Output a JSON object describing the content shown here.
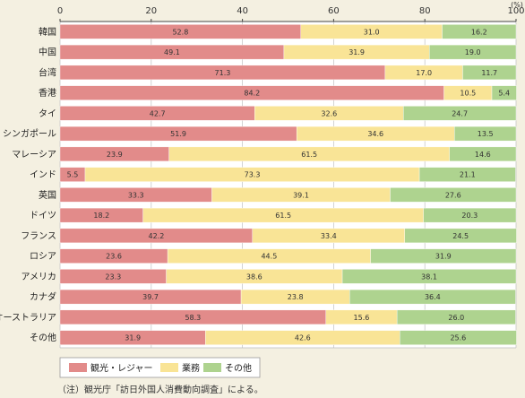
{
  "chart_data": {
    "type": "bar",
    "orientation": "horizontal",
    "stacked": true,
    "unit": "(%)",
    "xlim": [
      0,
      100
    ],
    "xticks": [
      "0",
      "20",
      "40",
      "60",
      "80",
      "100"
    ],
    "grid": true,
    "legend_position": "bottom-left",
    "categories": [
      "韓国",
      "中国",
      "台湾",
      "香港",
      "タイ",
      "シンガポール",
      "マレーシア",
      "インド",
      "英国",
      "ドイツ",
      "フランス",
      "ロシア",
      "アメリカ",
      "カナダ",
      "オーストラリア",
      "その他"
    ],
    "series": [
      {
        "name": "観光・レジャー",
        "color": "#e28b8a",
        "values": [
          52.8,
          49.1,
          71.3,
          84.2,
          42.7,
          51.9,
          23.9,
          5.5,
          33.3,
          18.2,
          42.2,
          23.6,
          23.3,
          39.7,
          58.3,
          31.9
        ],
        "labels": [
          "52.8",
          "49.1",
          "71.3",
          "84.2",
          "42.7",
          "51.9",
          "23.9",
          "5.5",
          "33.3",
          "18.2",
          "42.2",
          "23.6",
          "23.3",
          "39.7",
          "58.3",
          "31.9"
        ]
      },
      {
        "name": "業務",
        "color": "#f9e496",
        "values": [
          31.0,
          31.9,
          17.0,
          10.5,
          32.6,
          34.6,
          61.5,
          73.3,
          39.1,
          61.5,
          33.4,
          44.5,
          38.6,
          23.8,
          15.6,
          42.6
        ],
        "labels": [
          "31.0",
          "31.9",
          "17.0",
          "10.5",
          "32.6",
          "34.6",
          "61.5",
          "73.3",
          "39.1",
          "61.5",
          "33.4",
          "44.5",
          "38.6",
          "23.8",
          "15.6",
          "42.6"
        ]
      },
      {
        "name": "その他",
        "color": "#aed38f",
        "values": [
          16.2,
          19.0,
          11.7,
          5.4,
          24.7,
          13.5,
          14.6,
          21.1,
          27.6,
          20.3,
          24.5,
          31.9,
          38.1,
          36.4,
          26.0,
          25.6
        ],
        "labels": [
          "16.2",
          "19.0",
          "11.7",
          "5.4",
          "24.7",
          "13.5",
          "14.6",
          "21.1",
          "27.6",
          "20.3",
          "24.5",
          "31.9",
          "38.1",
          "36.4",
          "26.0",
          "25.6"
        ]
      }
    ]
  },
  "note": "（注）観光庁「訪日外国人消費動向調査」による。"
}
